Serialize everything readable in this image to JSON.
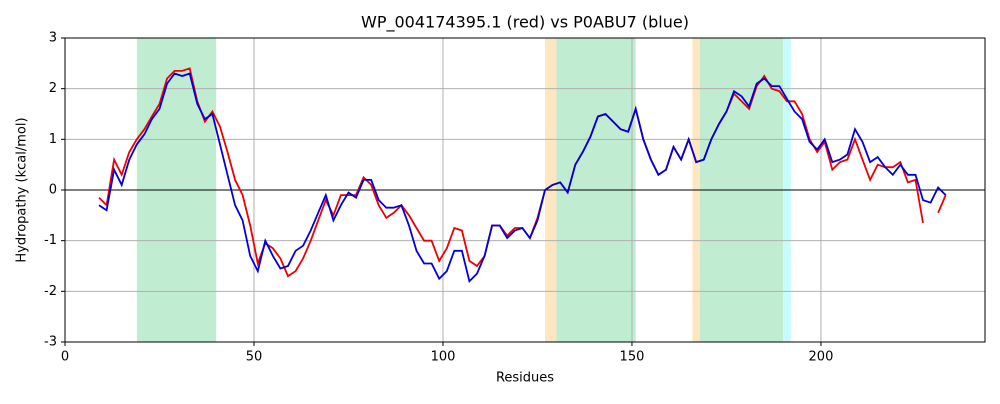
{
  "chart_data": {
    "type": "line",
    "title": "WP_004174395.1 (red) vs P0ABU7 (blue)",
    "x_label": "Residues",
    "y_label": "Hydropathy (kcal/mol)",
    "xlim": [
      0,
      243.4
    ],
    "ylim": [
      -3,
      3
    ],
    "xticks": [
      0,
      50,
      100,
      150,
      200
    ],
    "yticks": [
      -3,
      -2,
      -1,
      0,
      1,
      2,
      3
    ],
    "grid": true,
    "spans": [
      {
        "start": 19,
        "end": 40,
        "color": "#c0ecd2"
      },
      {
        "start": 127,
        "end": 130,
        "color": "#fde6c0"
      },
      {
        "start": 130,
        "end": 151,
        "color": "#c0ecd2"
      },
      {
        "start": 166,
        "end": 168,
        "color": "#fde6c0"
      },
      {
        "start": 168,
        "end": 190,
        "color": "#c0ecd2"
      },
      {
        "start": 190,
        "end": 192,
        "color": "#c6fcfc"
      }
    ],
    "x": [
      9,
      11,
      13,
      15,
      17,
      19,
      21,
      23,
      25,
      27,
      29,
      31,
      33,
      35,
      37,
      39,
      41,
      43,
      45,
      47,
      49,
      51,
      53,
      55,
      57,
      59,
      61,
      63,
      65,
      67,
      69,
      71,
      73,
      75,
      77,
      79,
      81,
      83,
      85,
      87,
      89,
      91,
      93,
      95,
      97,
      99,
      101,
      103,
      105,
      107,
      109,
      111,
      113,
      115,
      117,
      119,
      121,
      123,
      125,
      127,
      129,
      131,
      133,
      135,
      137,
      139,
      141,
      143,
      145,
      147,
      149,
      151,
      153,
      155,
      157,
      159,
      161,
      163,
      165,
      167,
      169,
      171,
      173,
      175,
      177,
      179,
      181,
      183,
      185,
      187,
      189,
      191,
      193,
      195,
      197,
      199,
      201,
      203,
      205,
      207,
      209,
      211,
      213,
      215,
      217,
      219,
      221,
      223,
      225,
      227,
      229,
      231,
      233
    ],
    "series": [
      {
        "name": "WP_004174395.1",
        "color": "#ee0000",
        "values": [
          -0.15,
          -0.3,
          0.6,
          0.3,
          0.75,
          1.0,
          1.2,
          1.45,
          1.7,
          2.2,
          2.35,
          2.35,
          2.4,
          1.75,
          1.35,
          1.55,
          1.25,
          0.75,
          0.2,
          -0.1,
          -0.7,
          -1.45,
          -1.05,
          -1.15,
          -1.35,
          -1.7,
          -1.6,
          -1.35,
          -1.0,
          -0.6,
          -0.2,
          -0.5,
          -0.1,
          -0.1,
          -0.1,
          0.25,
          0.1,
          -0.3,
          -0.55,
          -0.45,
          -0.3,
          -0.5,
          -0.75,
          -1.0,
          -1.0,
          -1.4,
          -1.15,
          -0.75,
          -0.8,
          -1.4,
          -1.5,
          -1.3,
          -0.7,
          -0.7,
          -0.9,
          -0.75,
          -0.75,
          -0.95,
          -0.55,
          0.0,
          0.1,
          0.15,
          -0.05,
          0.5,
          0.75,
          1.05,
          1.45,
          1.5,
          1.35,
          1.2,
          1.15,
          1.6,
          1.0,
          0.6,
          0.3,
          0.4,
          0.85,
          0.6,
          1.0,
          0.55,
          0.6,
          1.0,
          1.3,
          1.55,
          1.9,
          1.75,
          1.6,
          2.05,
          2.25,
          2.0,
          1.95,
          1.75,
          1.75,
          1.5,
          1.0,
          0.75,
          0.95,
          0.4,
          0.55,
          0.6,
          1.0,
          0.6,
          0.2,
          0.5,
          0.45,
          0.45,
          0.55,
          0.15,
          0.2,
          -0.65,
          null,
          -0.45,
          -0.1
        ]
      },
      {
        "name": "P0ABU7",
        "color": "#0000dd",
        "values": [
          -0.3,
          -0.4,
          0.4,
          0.1,
          0.6,
          0.9,
          1.1,
          1.4,
          1.6,
          2.1,
          2.3,
          2.25,
          2.3,
          1.7,
          1.4,
          1.5,
          0.9,
          0.3,
          -0.3,
          -0.6,
          -1.3,
          -1.6,
          -1.0,
          -1.3,
          -1.55,
          -1.5,
          -1.2,
          -1.1,
          -0.8,
          -0.45,
          -0.1,
          -0.6,
          -0.3,
          -0.05,
          -0.15,
          0.2,
          0.2,
          -0.2,
          -0.35,
          -0.35,
          -0.3,
          -0.7,
          -1.2,
          -1.45,
          -1.45,
          -1.75,
          -1.6,
          -1.2,
          -1.2,
          -1.8,
          -1.65,
          -1.3,
          -0.7,
          -0.7,
          -0.95,
          -0.8,
          -0.75,
          -0.95,
          -0.6,
          0.0,
          0.1,
          0.15,
          -0.05,
          0.5,
          0.75,
          1.05,
          1.45,
          1.5,
          1.35,
          1.2,
          1.15,
          1.6,
          1.0,
          0.6,
          0.3,
          0.4,
          0.85,
          0.6,
          1.0,
          0.55,
          0.6,
          1.0,
          1.3,
          1.55,
          1.95,
          1.85,
          1.65,
          2.1,
          2.2,
          2.05,
          2.05,
          1.8,
          1.55,
          1.4,
          0.95,
          0.8,
          1.0,
          0.55,
          0.6,
          0.7,
          1.2,
          0.95,
          0.55,
          0.65,
          0.45,
          0.3,
          0.5,
          0.3,
          0.3,
          -0.2,
          -0.25,
          0.05,
          -0.1
        ]
      }
    ]
  }
}
